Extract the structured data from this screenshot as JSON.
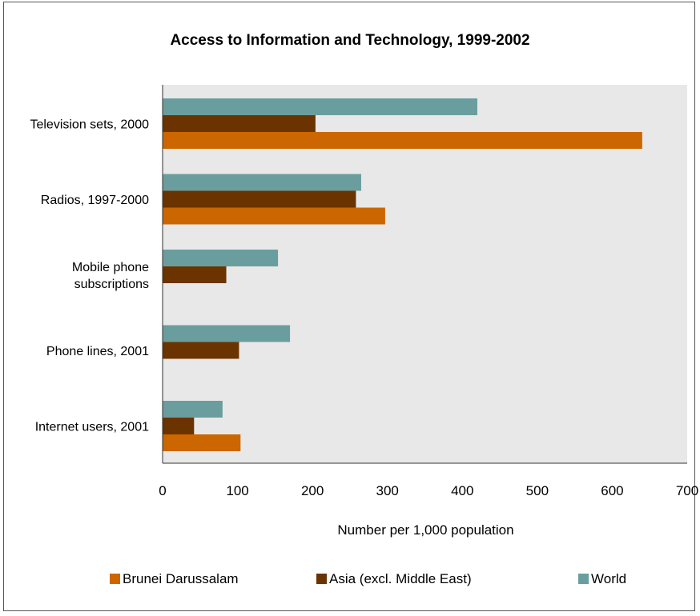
{
  "chart_data": {
    "type": "bar",
    "orientation": "horizontal",
    "title": "Access to Information and Technology, 1999-2002",
    "xlabel": "Number per 1,000 population",
    "ylabel": "",
    "xlim": [
      0,
      700
    ],
    "xticks": [
      "0",
      "100",
      "200",
      "300",
      "400",
      "500",
      "600",
      "700"
    ],
    "categories": [
      [
        "Television sets, 2000"
      ],
      [
        "Radios, 1997-2000"
      ],
      [
        "Mobile phone",
        "subscriptions"
      ],
      [
        "Phone lines, 2001"
      ],
      [
        "Internet users, 2001"
      ]
    ],
    "series": [
      {
        "name": "World",
        "color": "#6a9e9e",
        "values": [
          420,
          265,
          154,
          170,
          80
        ]
      },
      {
        "name": "Asia (excl. Middle East)",
        "color": "#6b3300",
        "values": [
          204,
          258,
          85,
          102,
          42
        ]
      },
      {
        "name": "Brunei Darussalam",
        "color": "#cc6600",
        "values": [
          640,
          297,
          null,
          null,
          104
        ]
      }
    ],
    "legend_order": [
      "Brunei Darussalam",
      "Asia (excl. Middle East)",
      "World"
    ],
    "legend_position": "bottom",
    "plot_background": "#e8e8e8",
    "grid": false
  }
}
